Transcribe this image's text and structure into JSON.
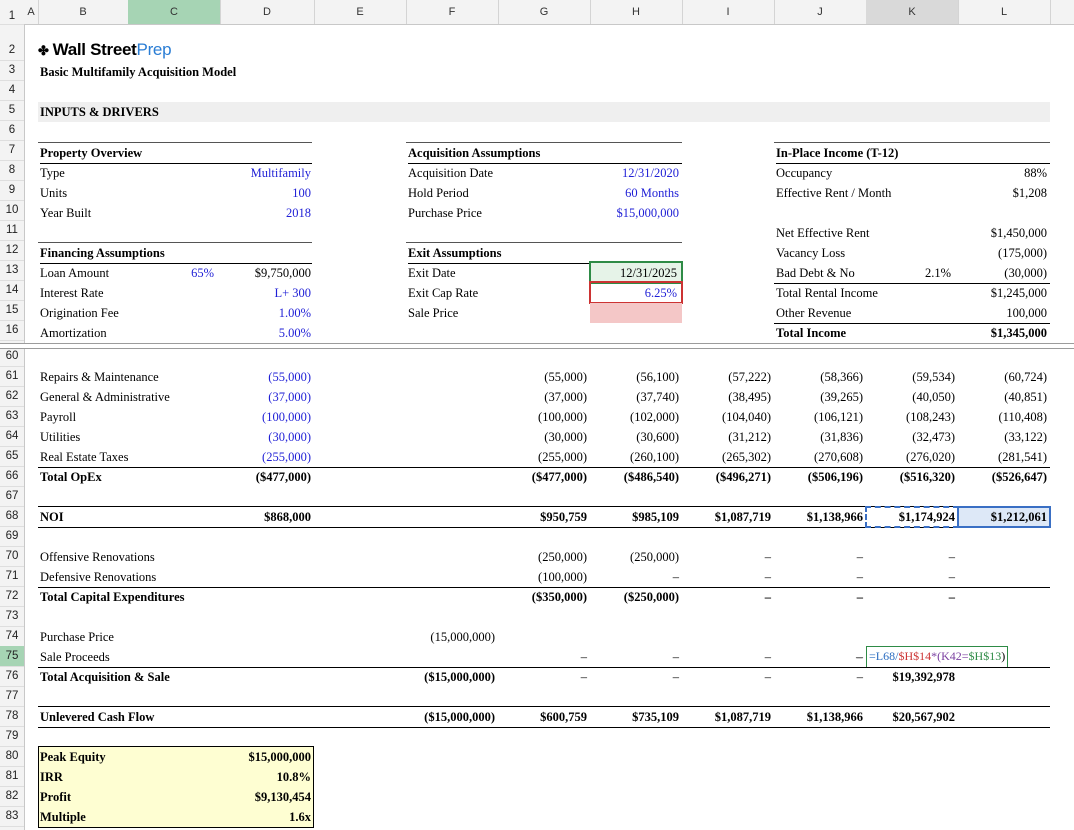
{
  "columns": [
    "A",
    "B",
    "C",
    "D",
    "E",
    "F",
    "G",
    "H",
    "I",
    "J",
    "K",
    "L"
  ],
  "rows": [
    "1",
    "2",
    "3",
    "4",
    "5",
    "6",
    "7",
    "8",
    "9",
    "10",
    "11",
    "12",
    "13",
    "14",
    "15",
    "16",
    "60",
    "61",
    "62",
    "63",
    "64",
    "65",
    "66",
    "67",
    "68",
    "69",
    "70",
    "71",
    "72",
    "73",
    "74",
    "75",
    "76",
    "77",
    "78",
    "79",
    "80",
    "81",
    "82",
    "83"
  ],
  "header": {
    "logo_main": "Wall Street",
    "logo_accent": "Prep",
    "model_title": "Basic Multifamily Acquisition Model",
    "section": "INPUTS & DRIVERS"
  },
  "property": {
    "title": "Property Overview",
    "rows": [
      {
        "label": "Type",
        "value": "Multifamily"
      },
      {
        "label": "Units",
        "value": "100"
      },
      {
        "label": "Year Built",
        "value": "2018"
      }
    ]
  },
  "acquisition": {
    "title": "Acquisition Assumptions",
    "rows": [
      {
        "label": "Acquisition Date",
        "value": "12/31/2020"
      },
      {
        "label": "Hold Period",
        "value": "60 Months"
      },
      {
        "label": "Purchase Price",
        "value": "$15,000,000"
      }
    ]
  },
  "inplace": {
    "title": "In-Place Income (T-12)",
    "rows": [
      {
        "label": "Occupancy",
        "value": "88%"
      },
      {
        "label": "Effective Rent / Month",
        "value": "$1,208"
      }
    ],
    "income": [
      {
        "label": "Net Effective Rent",
        "pct": "",
        "value": "$1,450,000"
      },
      {
        "label": "Vacancy Loss",
        "pct": "",
        "value": "(175,000)"
      },
      {
        "label": "Bad Debt & No",
        "pct": "2.1%",
        "value": "(30,000)"
      },
      {
        "label": "Total Rental Income",
        "pct": "",
        "value": "$1,245,000"
      },
      {
        "label": "Other Revenue",
        "pct": "",
        "value": "100,000"
      },
      {
        "label": "Total Income",
        "pct": "",
        "value": "$1,345,000"
      }
    ]
  },
  "financing": {
    "title": "Financing Assumptions",
    "rows": [
      {
        "label": "Loan Amount",
        "pct": "65%",
        "value": "$9,750,000"
      },
      {
        "label": "Interest Rate",
        "pct": "",
        "value": "L+ 300"
      },
      {
        "label": "Origination Fee",
        "pct": "",
        "value": "1.00%"
      },
      {
        "label": "Amortization",
        "pct": "",
        "value": "5.00%"
      }
    ]
  },
  "exit": {
    "title": "Exit Assumptions",
    "rows": [
      {
        "label": "Exit Date",
        "value": "12/31/2025"
      },
      {
        "label": "Exit Cap Rate",
        "value": "6.25%"
      },
      {
        "label": "Sale Price",
        "value": ""
      }
    ]
  },
  "opex": [
    {
      "label": "Repairs & Maintenance",
      "d": "(55,000)",
      "g": "(55,000)",
      "h": "(56,100)",
      "i": "(57,222)",
      "j": "(58,366)",
      "k": "(59,534)",
      "l": "(60,724)"
    },
    {
      "label": "General & Administrative",
      "d": "(37,000)",
      "g": "(37,000)",
      "h": "(37,740)",
      "i": "(38,495)",
      "j": "(39,265)",
      "k": "(40,050)",
      "l": "(40,851)"
    },
    {
      "label": "Payroll",
      "d": "(100,000)",
      "g": "(100,000)",
      "h": "(102,000)",
      "i": "(104,040)",
      "j": "(106,121)",
      "k": "(108,243)",
      "l": "(110,408)"
    },
    {
      "label": "Utilities",
      "d": "(30,000)",
      "g": "(30,000)",
      "h": "(30,600)",
      "i": "(31,212)",
      "j": "(31,836)",
      "k": "(32,473)",
      "l": "(33,122)"
    },
    {
      "label": "Real Estate Taxes",
      "d": "(255,000)",
      "g": "(255,000)",
      "h": "(260,100)",
      "i": "(265,302)",
      "j": "(270,608)",
      "k": "(276,020)",
      "l": "(281,541)"
    }
  ],
  "total_opex": {
    "label": "Total OpEx",
    "d": "($477,000)",
    "g": "($477,000)",
    "h": "($486,540)",
    "i": "($496,271)",
    "j": "($506,196)",
    "k": "($516,320)",
    "l": "($526,647)"
  },
  "noi": {
    "label": "NOI",
    "d": "$868,000",
    "g": "$950,759",
    "h": "$985,109",
    "i": "$1,087,719",
    "j": "$1,138,966",
    "k": "$1,174,924",
    "l": "$1,212,061"
  },
  "capex": [
    {
      "label": "Offensive Renovations",
      "g": "(250,000)",
      "h": "(250,000)",
      "i": "–",
      "j": "–",
      "k": "–"
    },
    {
      "label": "Defensive Renovations",
      "g": "(100,000)",
      "h": "–",
      "i": "–",
      "j": "–",
      "k": "–"
    }
  ],
  "total_capex": {
    "label": "Total Capital Expenditures",
    "g": "($350,000)",
    "h": "($250,000)",
    "i": "–",
    "j": "–",
    "k": "–"
  },
  "purchase": {
    "label": "Purchase Price",
    "f": "(15,000,000)"
  },
  "sale": {
    "label": "Sale Proceeds",
    "g": "–",
    "h": "–",
    "i": "–",
    "j": "–",
    "k_dash": "–"
  },
  "formula": {
    "p1": "=L68/",
    "p2": "$H$14",
    "p3": "*(K42=",
    "p4": "$H$13",
    "p5": ")"
  },
  "total_acq": {
    "label": "Total Acquisition & Sale",
    "f": "($15,000,000)",
    "g": "–",
    "h": "–",
    "i": "–",
    "j": "–",
    "k": "$19,392,978"
  },
  "ucf": {
    "label": "Unlevered Cash Flow",
    "f": "($15,000,000)",
    "g": "$600,759",
    "h": "$735,109",
    "i": "$1,087,719",
    "j": "$1,138,966",
    "k": "$20,567,902"
  },
  "returns": [
    {
      "label": "Peak Equity",
      "value": "$15,000,000"
    },
    {
      "label": "IRR",
      "value": "10.8%"
    },
    {
      "label": "Profit",
      "value": "$9,130,454"
    },
    {
      "label": "Multiple",
      "value": "1.6x"
    }
  ]
}
